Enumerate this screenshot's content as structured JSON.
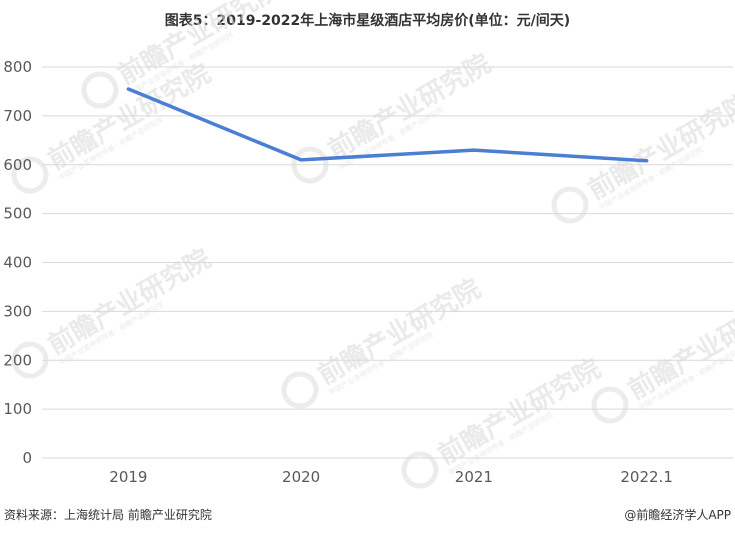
{
  "title": "图表5：2019-2022年上海市星级酒店平均房价(单位：元/间天)",
  "footer": {
    "source": "资料来源：上海统计局 前瞻产业研究院",
    "brand": "@前瞻经济学人APP"
  },
  "watermark": {
    "text": "前瞻产业研究院",
    "subtext": "中国产业咨询领导者 · 前瞻产业研究院"
  },
  "colors": {
    "line": "#4a7fd4",
    "grid": "#d9d9d9",
    "text": "#595959"
  },
  "chart_data": {
    "type": "line",
    "categories": [
      "2019",
      "2020",
      "2021",
      "2022.1"
    ],
    "series": [
      {
        "values": [
          755,
          610,
          630,
          608
        ]
      }
    ],
    "yticks": [
      0,
      100,
      200,
      300,
      400,
      500,
      600,
      700,
      800
    ],
    "ylim": [
      0,
      800
    ],
    "grid": true,
    "legend": "none"
  }
}
